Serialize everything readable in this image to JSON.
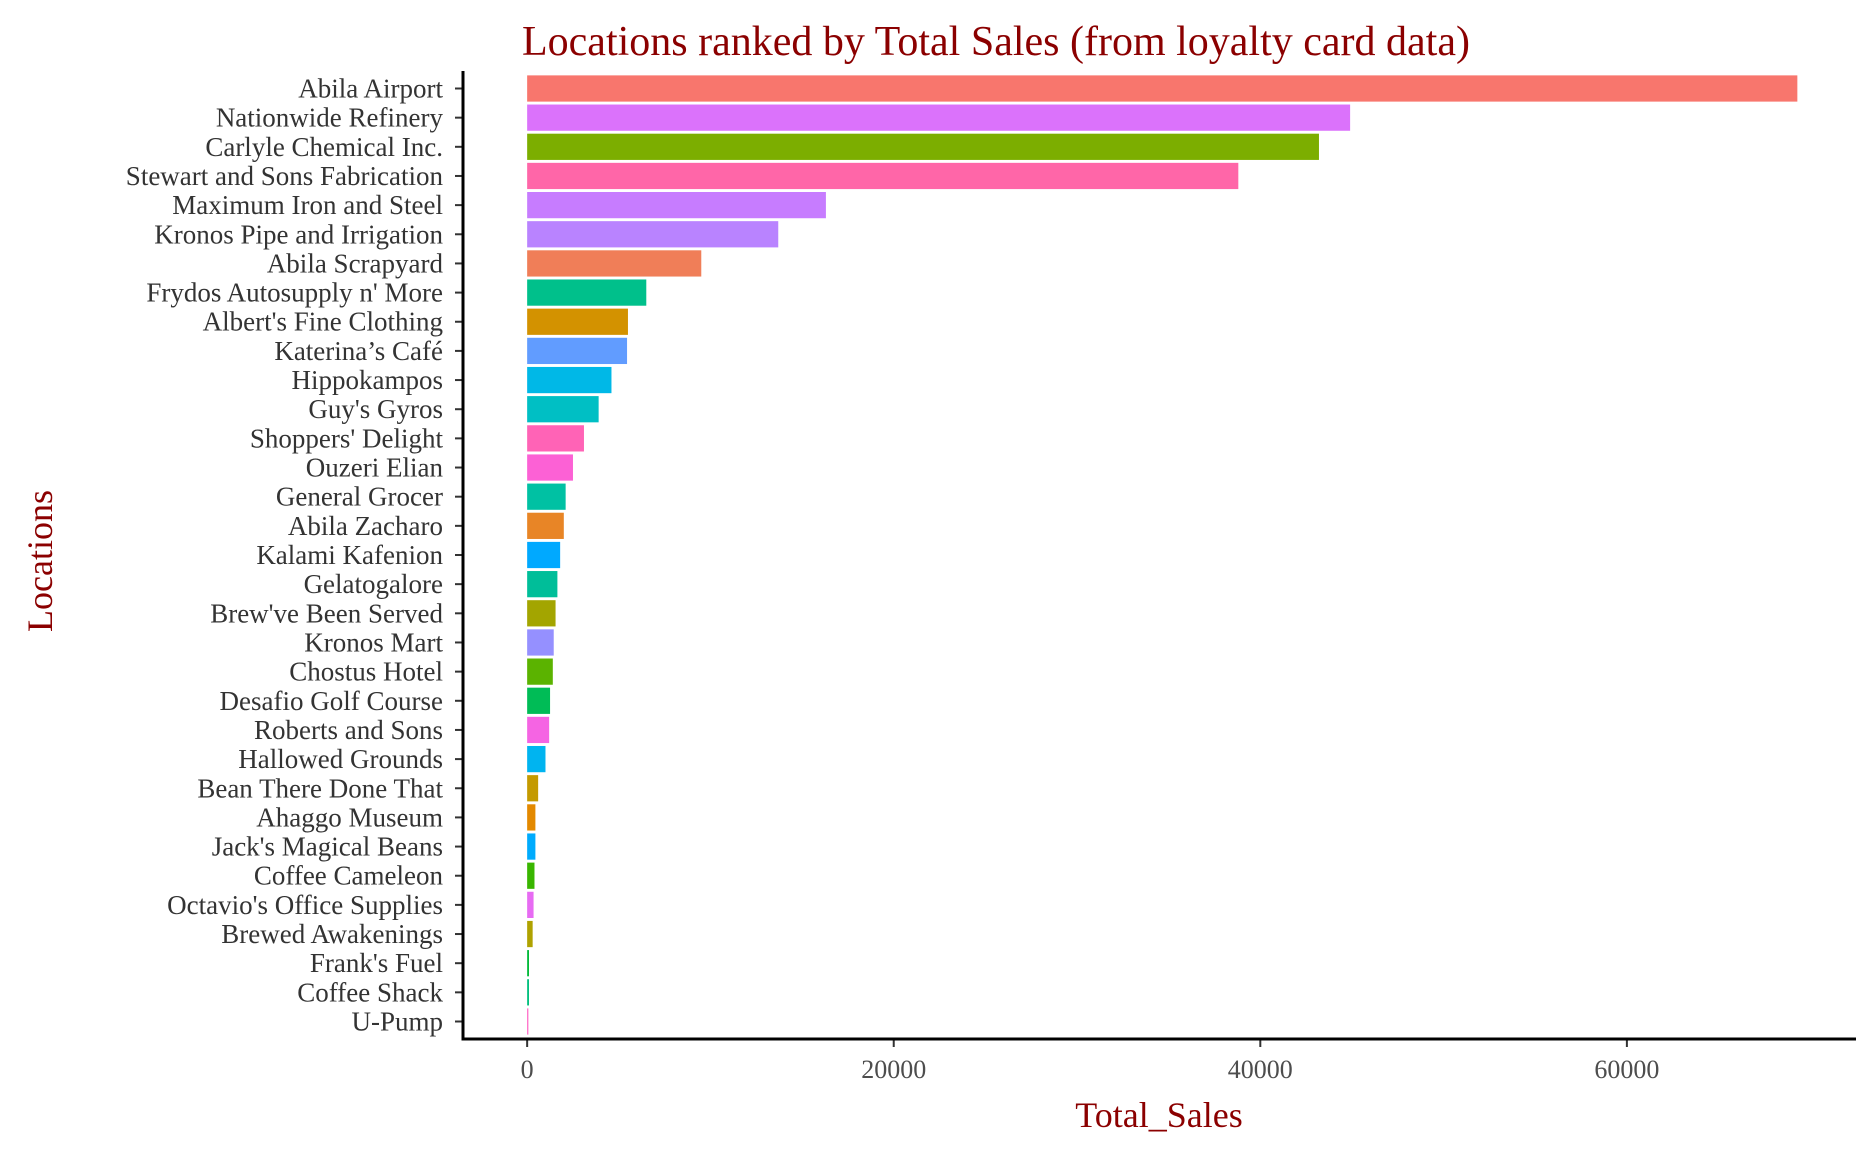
{
  "chart_data": {
    "type": "bar",
    "orientation": "horizontal",
    "title": "Locations ranked by Total Sales (from loyalty card data)",
    "xlabel": "Total_Sales",
    "ylabel": "Locations",
    "xlim": [
      -3500,
      72500
    ],
    "xticks": [
      0,
      20000,
      40000,
      60000
    ],
    "xtick_labels": [
      "0",
      "20000",
      "40000",
      "60000"
    ],
    "grid": false,
    "legend": "none",
    "title_color": "#8b0000",
    "axis_title_color": "#8b0000",
    "categories": [
      "Abila Airport",
      "Nationwide Refinery",
      "Carlyle Chemical Inc.",
      "Stewart and Sons Fabrication",
      "Maximum Iron and Steel",
      "Kronos Pipe and Irrigation",
      "Abila Scrapyard",
      "Frydos Autosupply n' More",
      "Albert's Fine Clothing",
      "Katerina’s Café",
      "Hippokampos",
      "Guy's Gyros",
      "Shoppers' Delight",
      "Ouzeri Elian",
      "General Grocer",
      "Abila Zacharo",
      "Kalami Kafenion",
      "Gelatogalore",
      "Brew've Been Served",
      "Kronos Mart",
      "Chostus Hotel",
      "Desafio Golf Course",
      "Roberts and Sons",
      "Hallowed Grounds",
      "Bean There Done That",
      "Ahaggo Museum",
      "Jack's Magical Beans",
      "Coffee Cameleon",
      "Octavio's Office Supplies",
      "Brewed Awakenings",
      "Frank's Fuel",
      "Coffee Shack",
      "U-Pump"
    ],
    "values": [
      69300,
      44900,
      43200,
      38800,
      16300,
      13700,
      9500,
      6500,
      5500,
      5450,
      4600,
      3900,
      3100,
      2500,
      2100,
      2000,
      1800,
      1650,
      1550,
      1450,
      1400,
      1250,
      1200,
      1000,
      600,
      450,
      450,
      400,
      350,
      300,
      100,
      100,
      50
    ],
    "colors": [
      "#F8766D",
      "#DB72FB",
      "#7CAE00",
      "#FF66A8",
      "#C77CFF",
      "#B983FF",
      "#F07E58",
      "#00C08B",
      "#D39200",
      "#619CFF",
      "#00B8E7",
      "#00BFC4",
      "#FF63B6",
      "#FC61D5",
      "#00C1A3",
      "#E88526",
      "#00A9FF",
      "#00BE99",
      "#A3A500",
      "#9590FF",
      "#5BB300",
      "#00BC56",
      "#F564E3",
      "#00B4F0",
      "#C49A00",
      "#E38900",
      "#00ABFD",
      "#39B600",
      "#E76BF3",
      "#AFA200",
      "#00BA38",
      "#00BF7D",
      "#FF61C3"
    ]
  }
}
